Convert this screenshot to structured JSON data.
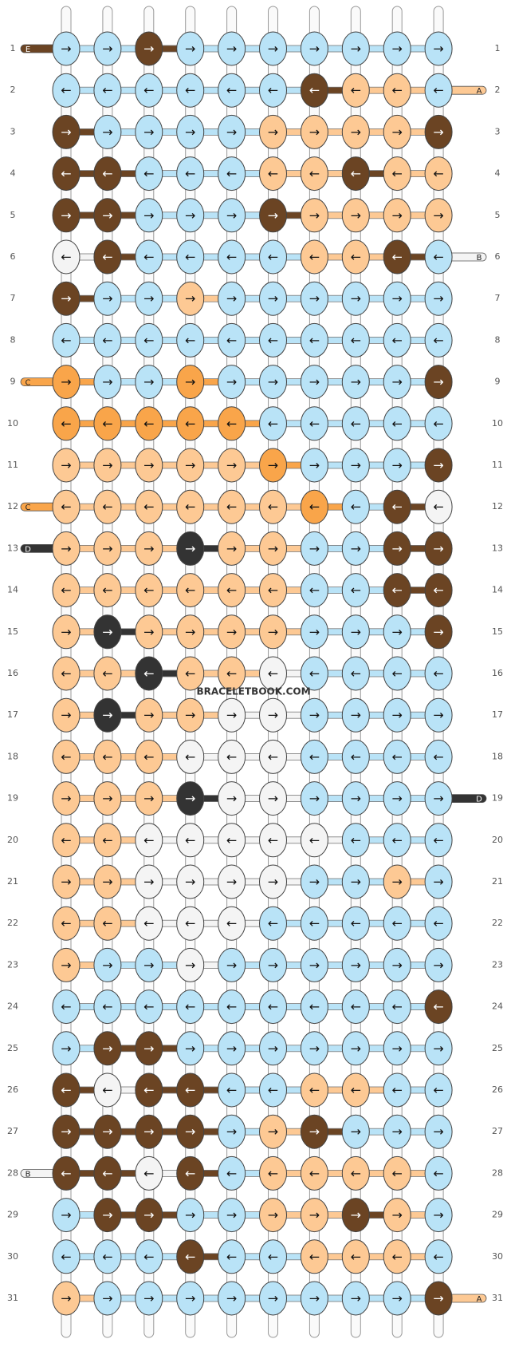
{
  "watermark": "BRACELETBOOK.COM",
  "palette": {
    "L": "#b9e3f7",
    "D": "#6b4423",
    "P": "#fdc994",
    "O": "#f9a54a",
    "W": "#f4f4f4",
    "K": "#333333"
  },
  "rows": [
    {
      "number": 1,
      "arrows": [
        "→",
        "→",
        "→",
        "→",
        "→",
        "→",
        "→",
        "→",
        "→",
        "→"
      ],
      "colors": "LLDLLLLLLL",
      "left_string": {
        "label": "E",
        "color": "D"
      }
    },
    {
      "number": 2,
      "arrows": [
        "←",
        "←",
        "←",
        "←",
        "←",
        "←",
        "←",
        "←",
        "←",
        "←"
      ],
      "colors": "LLLLLLDPPL",
      "right_string": {
        "label": "A",
        "color": "P"
      }
    },
    {
      "number": 3,
      "arrows": [
        "→",
        "→",
        "→",
        "→",
        "→",
        "→",
        "→",
        "→",
        "→",
        "→"
      ],
      "colors": "DLLLLPPPPD"
    },
    {
      "number": 4,
      "arrows": [
        "←",
        "←",
        "←",
        "←",
        "←",
        "←",
        "←",
        "←",
        "←",
        "←"
      ],
      "colors": "DDLLLPPDPP"
    },
    {
      "number": 5,
      "arrows": [
        "→",
        "→",
        "→",
        "→",
        "→",
        "→",
        "→",
        "→",
        "→",
        "→"
      ],
      "colors": "DDLLLDPPPP"
    },
    {
      "number": 6,
      "arrows": [
        "←",
        "←",
        "←",
        "←",
        "←",
        "←",
        "←",
        "←",
        "←",
        "←"
      ],
      "colors": "WDLLLLPPDL",
      "right_string": {
        "label": "B",
        "color": "W"
      }
    },
    {
      "number": 7,
      "arrows": [
        "→",
        "→",
        "→",
        "→",
        "→",
        "→",
        "→",
        "→",
        "→",
        "→"
      ],
      "colors": "DLLPLLLLLL"
    },
    {
      "number": 8,
      "arrows": [
        "←",
        "←",
        "←",
        "←",
        "←",
        "←",
        "←",
        "←",
        "←",
        "←"
      ],
      "colors": "LLLLLLLLLL"
    },
    {
      "number": 9,
      "arrows": [
        "→",
        "→",
        "→",
        "→",
        "→",
        "→",
        "→",
        "→",
        "→",
        "→"
      ],
      "colors": "OLLOLLLLLD",
      "left_string": {
        "label": "C",
        "color": "O"
      }
    },
    {
      "number": 10,
      "arrows": [
        "←",
        "←",
        "←",
        "←",
        "←",
        "←",
        "←",
        "←",
        "←",
        "←"
      ],
      "colors": "OOOOOLLLLL"
    },
    {
      "number": 11,
      "arrows": [
        "→",
        "→",
        "→",
        "→",
        "→",
        "→",
        "→",
        "→",
        "→",
        "→"
      ],
      "colors": "PPPPPOLLLD"
    },
    {
      "number": 12,
      "arrows": [
        "←",
        "←",
        "←",
        "←",
        "←",
        "←",
        "←",
        "←",
        "←",
        "←"
      ],
      "colors": "PPPPPPOLDW",
      "left_string": {
        "label": "C",
        "color": "O"
      }
    },
    {
      "number": 13,
      "arrows": [
        "→",
        "→",
        "→",
        "→",
        "→",
        "→",
        "→",
        "→",
        "→",
        "→"
      ],
      "colors": "PPPKPPLLDD",
      "left_string": {
        "label": "D",
        "color": "K"
      }
    },
    {
      "number": 14,
      "arrows": [
        "←",
        "←",
        "←",
        "←",
        "←",
        "←",
        "←",
        "←",
        "←",
        "←"
      ],
      "colors": "PPPPPPLLDD"
    },
    {
      "number": 15,
      "arrows": [
        "→",
        "→",
        "→",
        "→",
        "→",
        "→",
        "→",
        "→",
        "→",
        "→"
      ],
      "colors": "PKPPPPLLLD"
    },
    {
      "number": 16,
      "arrows": [
        "←",
        "←",
        "←",
        "←",
        "←",
        "←",
        "←",
        "←",
        "←",
        "←"
      ],
      "colors": "PPKPPWLLLL"
    },
    {
      "number": 17,
      "arrows": [
        "→",
        "→",
        "→",
        "→",
        "→",
        "→",
        "→",
        "→",
        "→",
        "→"
      ],
      "colors": "PKPPWWLLLL"
    },
    {
      "number": 18,
      "arrows": [
        "←",
        "←",
        "←",
        "←",
        "←",
        "←",
        "←",
        "←",
        "←",
        "←"
      ],
      "colors": "PPPWWWLLLL"
    },
    {
      "number": 19,
      "arrows": [
        "→",
        "→",
        "→",
        "→",
        "→",
        "→",
        "→",
        "→",
        "→",
        "→"
      ],
      "colors": "PPPKWWLLLL",
      "right_string": {
        "label": "D",
        "color": "K"
      }
    },
    {
      "number": 20,
      "arrows": [
        "←",
        "←",
        "←",
        "←",
        "←",
        "←",
        "←",
        "←",
        "←",
        "←"
      ],
      "colors": "PPWWWWWLLL"
    },
    {
      "number": 21,
      "arrows": [
        "→",
        "→",
        "→",
        "→",
        "→",
        "→",
        "→",
        "→",
        "→",
        "→"
      ],
      "colors": "PPWWWWLLPL"
    },
    {
      "number": 22,
      "arrows": [
        "←",
        "←",
        "←",
        "←",
        "←",
        "←",
        "←",
        "←",
        "←",
        "←"
      ],
      "colors": "PPWWWLLLLL"
    },
    {
      "number": 23,
      "arrows": [
        "→",
        "→",
        "→",
        "→",
        "→",
        "→",
        "→",
        "→",
        "→",
        "→"
      ],
      "colors": "PLLWLLLLLL"
    },
    {
      "number": 24,
      "arrows": [
        "←",
        "←",
        "←",
        "←",
        "←",
        "←",
        "←",
        "←",
        "←",
        "←"
      ],
      "colors": "LLLLLLLLLD"
    },
    {
      "number": 25,
      "arrows": [
        "→",
        "→",
        "→",
        "→",
        "→",
        "→",
        "→",
        "→",
        "→",
        "→"
      ],
      "colors": "LDDLLLLLLL"
    },
    {
      "number": 26,
      "arrows": [
        "←",
        "←",
        "←",
        "←",
        "←",
        "←",
        "←",
        "←",
        "←",
        "←"
      ],
      "colors": "DWDDLLPPLL"
    },
    {
      "number": 27,
      "arrows": [
        "→",
        "→",
        "→",
        "→",
        "→",
        "→",
        "→",
        "→",
        "→",
        "→"
      ],
      "colors": "DDDDLPDLLL"
    },
    {
      "number": 28,
      "arrows": [
        "←",
        "←",
        "←",
        "←",
        "←",
        "←",
        "←",
        "←",
        "←",
        "←"
      ],
      "colors": "DDWDLPPPPL",
      "left_string": {
        "label": "B",
        "color": "W"
      }
    },
    {
      "number": 29,
      "arrows": [
        "→",
        "→",
        "→",
        "→",
        "→",
        "→",
        "→",
        "→",
        "→",
        "→"
      ],
      "colors": "LDDLLPPDPL"
    },
    {
      "number": 30,
      "arrows": [
        "←",
        "←",
        "←",
        "←",
        "←",
        "←",
        "←",
        "←",
        "←",
        "←"
      ],
      "colors": "LLLDLLPPPL"
    },
    {
      "number": 31,
      "arrows": [
        "→",
        "→",
        "→",
        "→",
        "→",
        "→",
        "→",
        "→",
        "→",
        "→"
      ],
      "colors": "PLLLLLLLLD",
      "right_string": {
        "label": "A",
        "color": "P"
      }
    }
  ]
}
